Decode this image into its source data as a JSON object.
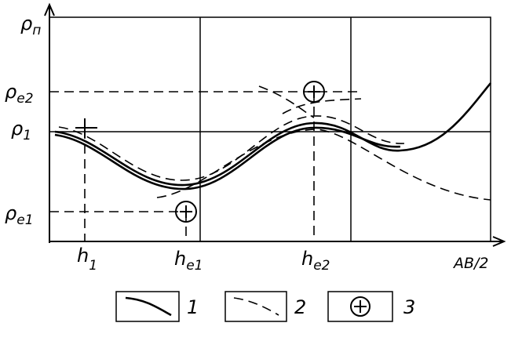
{
  "axes": {
    "y_label": {
      "main": "ρ",
      "sub": "п"
    },
    "x_label": "AB/2"
  },
  "y_marks": [
    {
      "main": "ρ",
      "sub": "e2"
    },
    {
      "main": "ρ",
      "sub": "1"
    },
    {
      "main": "ρ",
      "sub": "e1"
    }
  ],
  "x_marks": [
    {
      "main": "h",
      "sub": "1"
    },
    {
      "main": "h",
      "sub": "e1"
    },
    {
      "main": "h",
      "sub": "e2"
    }
  ],
  "legend": [
    "1",
    "2",
    "3"
  ]
}
